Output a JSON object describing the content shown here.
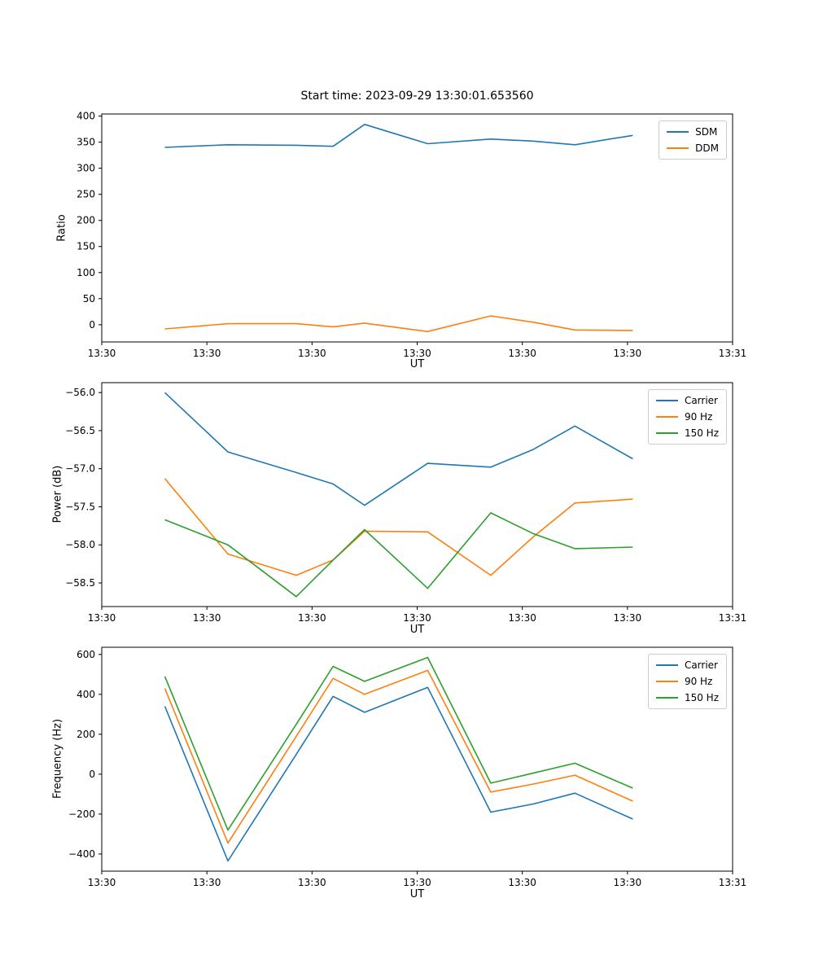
{
  "title": "Start time: 2023-09-29 13:30:01.653560",
  "chart_data": [
    {
      "type": "line",
      "name": "ratio",
      "ylabel": "Ratio",
      "xlabel": "UT",
      "legend_position": "upper right",
      "grid": false,
      "x_tick_labels": [
        "13:30",
        "13:30",
        "13:30",
        "13:30",
        "13:30",
        "13:30",
        "13:31"
      ],
      "x_tick_seconds": [
        0,
        10,
        20,
        30,
        40,
        50,
        60
      ],
      "xlim_seconds": [
        0,
        60
      ],
      "ylim": [
        -33,
        404
      ],
      "ytick_values": [
        0,
        50,
        100,
        150,
        200,
        250,
        300,
        350,
        400
      ],
      "ytick_labels": [
        "0",
        "50",
        "100",
        "150",
        "200",
        "250",
        "300",
        "350",
        "400"
      ],
      "x_seconds": [
        6,
        12,
        18.5,
        22,
        25,
        31,
        37,
        41,
        45,
        50.5
      ],
      "series": [
        {
          "name": "SDM",
          "color": "#1f77b4",
          "values": [
            340,
            345,
            344,
            342,
            384,
            347,
            356,
            352,
            345,
            363
          ]
        },
        {
          "name": "DDM",
          "color": "#ff7f0e",
          "values": [
            -8,
            2,
            2,
            -4,
            3,
            -13,
            17,
            5,
            -10,
            -11
          ]
        }
      ]
    },
    {
      "type": "line",
      "name": "power",
      "ylabel": "Power (dB)",
      "xlabel": "UT",
      "legend_position": "upper right",
      "grid": false,
      "x_tick_labels": [
        "13:30",
        "13:30",
        "13:30",
        "13:30",
        "13:30",
        "13:30",
        "13:31"
      ],
      "x_tick_seconds": [
        0,
        10,
        20,
        30,
        40,
        50,
        60
      ],
      "xlim_seconds": [
        0,
        60
      ],
      "ylim": [
        -58.81,
        -55.87
      ],
      "ytick_values": [
        -56.0,
        -56.5,
        -57.0,
        -57.5,
        -58.0,
        -58.5
      ],
      "ytick_labels": [
        "−56.0",
        "−56.5",
        "−57.0",
        "−57.5",
        "−58.0",
        "−58.5"
      ],
      "x_seconds": [
        6,
        12,
        18.5,
        22,
        25,
        31,
        37,
        41,
        45,
        50.5
      ],
      "series": [
        {
          "name": "Carrier",
          "color": "#1f77b4",
          "values": [
            -56.0,
            -56.78,
            -57.05,
            -57.2,
            -57.48,
            -56.93,
            -56.98,
            -56.75,
            -56.44,
            -56.87
          ]
        },
        {
          "name": "90 Hz",
          "color": "#ff7f0e",
          "values": [
            -57.13,
            -58.12,
            -58.4,
            -58.2,
            -57.82,
            -57.83,
            -58.4,
            -57.9,
            -57.45,
            -57.4
          ]
        },
        {
          "name": "150 Hz",
          "color": "#2ca02c",
          "values": [
            -57.67,
            -58.0,
            -58.68,
            -58.2,
            -57.8,
            -58.57,
            -57.58,
            -57.85,
            -58.05,
            -58.03
          ]
        }
      ]
    },
    {
      "type": "line",
      "name": "frequency",
      "ylabel": "Frequency (Hz)",
      "xlabel": "UT",
      "legend_position": "upper right",
      "grid": false,
      "x_tick_labels": [
        "13:30",
        "13:30",
        "13:30",
        "13:30",
        "13:30",
        "13:30",
        "13:31"
      ],
      "x_tick_seconds": [
        0,
        10,
        20,
        30,
        40,
        50,
        60
      ],
      "xlim_seconds": [
        0,
        60
      ],
      "ylim": [
        -486,
        636
      ],
      "ytick_values": [
        -400,
        -200,
        0,
        200,
        400,
        600
      ],
      "ytick_labels": [
        "−400",
        "−200",
        "0",
        "200",
        "400",
        "600"
      ],
      "x_seconds": [
        6,
        12,
        18.5,
        22,
        25,
        31,
        37,
        41,
        45,
        50.5
      ],
      "series": [
        {
          "name": "Carrier",
          "color": "#1f77b4",
          "values": [
            340,
            -435,
            100,
            390,
            310,
            435,
            -190,
            -150,
            -95,
            -225
          ]
        },
        {
          "name": "90 Hz",
          "color": "#ff7f0e",
          "values": [
            430,
            -345,
            190,
            480,
            400,
            520,
            -90,
            -50,
            -5,
            -135
          ]
        },
        {
          "name": "150 Hz",
          "color": "#2ca02c",
          "values": [
            490,
            -280,
            250,
            540,
            465,
            585,
            -45,
            5,
            55,
            -70
          ]
        }
      ]
    }
  ]
}
